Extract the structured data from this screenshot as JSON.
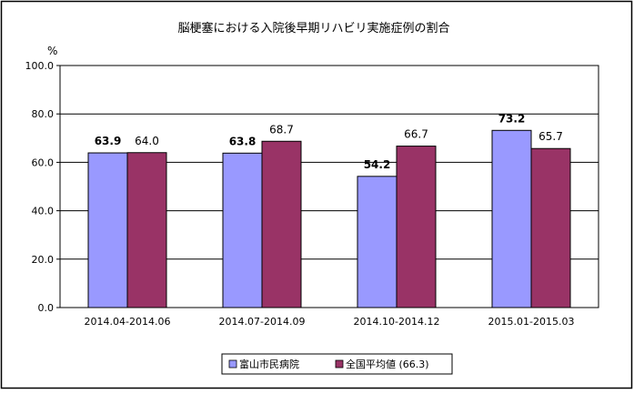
{
  "chart_data": {
    "type": "bar",
    "title": "脳梗塞における入院後早期リハビリ実施症例の割合",
    "ylabel": "%",
    "ylim": [
      0,
      100
    ],
    "yticks": [
      "0.0",
      "20.0",
      "40.0",
      "60.0",
      "80.0",
      "100.0"
    ],
    "grid": true,
    "legend_position": "bottom",
    "categories": [
      "2014.04-2014.06",
      "2014.07-2014.09",
      "2014.10-2014.12",
      "2015.01-2015.03"
    ],
    "series": [
      {
        "name": "富山市民病院",
        "values": [
          63.9,
          63.8,
          54.2,
          73.2
        ],
        "labels": [
          "63.9",
          "63.8",
          "54.2",
          "73.2"
        ],
        "color": "#9999ff",
        "label_bold": true
      },
      {
        "name": "全国平均値 (66.3)",
        "values": [
          64.0,
          68.7,
          66.7,
          65.7
        ],
        "labels": [
          "64.0",
          "68.7",
          "66.7",
          "65.7"
        ],
        "color": "#993366",
        "label_bold": false
      }
    ]
  }
}
